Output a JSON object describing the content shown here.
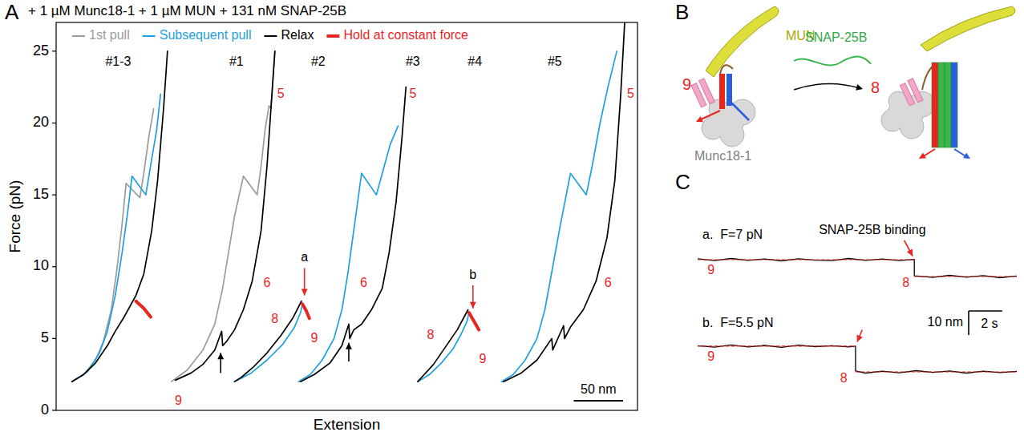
{
  "panel_labels": [
    "A",
    "B",
    "C"
  ],
  "chart_data": [
    {
      "type": "line",
      "title": "+ 1 µM Munc18-1 + 1 µM MUN + 131 nM SNAP-25B",
      "x_label": "Extension",
      "y_label": "Force (pN)",
      "xlim": [
        0,
        590
      ],
      "ylim": [
        0,
        27
      ],
      "yticks": [
        0,
        5,
        10,
        15,
        20,
        25
      ],
      "tick_labels": "y",
      "legend": "top-left",
      "scale_bar": {
        "x": 50,
        "x_label": "50 nm"
      },
      "series": [
        {
          "name": "1st pull",
          "color": "#9b9b9b",
          "x": [
            16,
            28,
            40,
            48,
            56,
            62,
            67,
            71,
            85,
            89,
            94,
            99
          ],
          "values": [
            2,
            2.5,
            3.5,
            4.8,
            7,
            10,
            13,
            15.8,
            14.8,
            16.5,
            19,
            21
          ]
        },
        {
          "name": "Subsequent pull",
          "color": "#1fa0e0",
          "x": [
            16,
            32,
            44,
            52,
            60,
            67,
            73,
            77,
            91,
            97,
            102,
            106
          ],
          "values": [
            2,
            2.7,
            4,
            5.5,
            8,
            11,
            14,
            16.3,
            15,
            17.5,
            19.5,
            22
          ]
        },
        {
          "name": "Relax",
          "color": "#000000",
          "x": [
            113,
            109,
            103,
            97,
            89,
            81,
            69,
            60,
            52,
            40,
            28,
            16
          ],
          "values": [
            25,
            21,
            16,
            12.5,
            9.5,
            8,
            6.5,
            5.5,
            4.5,
            3.3,
            2.5,
            2
          ]
        },
        {
          "name": "Hold at constant force",
          "color": "#e8251f",
          "line_style": "bold",
          "x": [
            81,
            89,
            96
          ],
          "values": [
            7.6,
            7.1,
            6.5
          ]
        },
        {
          "name": "1st pull",
          "color": "#9b9b9b",
          "x": [
            117,
            133,
            149,
            161,
            169,
            175,
            181,
            190,
            204,
            208,
            212,
            216,
            218,
            220,
            222
          ],
          "values": [
            2,
            2.8,
            4.2,
            6,
            8.5,
            11,
            13.5,
            16.3,
            15,
            17,
            19.5,
            21.2,
            21,
            23,
            25
          ]
        },
        {
          "name": "Relax",
          "color": "#000000",
          "x": [
            222,
            219,
            214,
            208,
            199,
            190,
            181,
            173,
            169,
            168,
            161,
            149,
            137,
            121
          ],
          "values": [
            25,
            22,
            17,
            12.5,
            9,
            7,
            5.6,
            4.8,
            4.5,
            5.5,
            4.2,
            3.2,
            2.6,
            2.1
          ]
        },
        {
          "name": "Subsequent pull",
          "color": "#1fa0e0",
          "x": [
            181,
            198,
            214,
            230,
            242,
            248,
            250
          ],
          "values": [
            2,
            2.6,
            3.5,
            4.6,
            5.8,
            6.8,
            7.4
          ]
        },
        {
          "name": "Relax",
          "color": "#000000",
          "x": [
            249,
            240,
            228,
            214,
            200,
            188,
            181
          ],
          "values": [
            7.6,
            6.4,
            5.2,
            4,
            3,
            2.3,
            2
          ]
        },
        {
          "name": "Hold at constant force",
          "color": "#e8251f",
          "line_style": "bold",
          "x": [
            250,
            254,
            257
          ],
          "values": [
            7.4,
            6.9,
            6.4
          ]
        },
        {
          "name": "Subsequent pull",
          "color": "#1fa0e0",
          "x": [
            246,
            258,
            270,
            282,
            290,
            296,
            302,
            310,
            325,
            331,
            339,
            347
          ],
          "values": [
            2,
            2.5,
            3.5,
            5,
            7,
            9.5,
            12.5,
            16.5,
            15,
            16.5,
            18.5,
            19.8
          ]
        },
        {
          "name": "Relax",
          "color": "#000000",
          "x": [
            355,
            351,
            345,
            338,
            331,
            320,
            310,
            302,
            298,
            297,
            290,
            278,
            262,
            248
          ],
          "values": [
            22.5,
            19,
            14.5,
            11,
            8.5,
            7,
            6,
            5.6,
            5,
            6,
            4.5,
            3.3,
            2.5,
            2
          ]
        },
        {
          "name": "Subsequent pull",
          "color": "#1fa0e0",
          "x": [
            367,
            379,
            391,
            403,
            411,
            417,
            419
          ],
          "values": [
            2,
            2.5,
            3.3,
            4.3,
            5.3,
            6.2,
            6.8
          ]
        },
        {
          "name": "Relax",
          "color": "#000000",
          "x": [
            418,
            407,
            395,
            383,
            371,
            367
          ],
          "values": [
            7,
            5.6,
            4.4,
            3.2,
            2.3,
            2
          ]
        },
        {
          "name": "Hold at constant force",
          "color": "#e8251f",
          "line_style": "bold",
          "x": [
            419,
            424,
            429
          ],
          "values": [
            6.8,
            6.2,
            5.6
          ]
        },
        {
          "name": "Subsequent pull",
          "color": "#1fa0e0",
          "x": [
            452,
            464,
            476,
            488,
            496,
            504,
            512,
            522,
            538,
            544,
            552,
            560,
            569
          ],
          "values": [
            2,
            2.5,
            3.5,
            5,
            7,
            10,
            13,
            16.5,
            15,
            17,
            20,
            22.5,
            25
          ]
        },
        {
          "name": "Relax",
          "color": "#000000",
          "x": [
            577,
            573,
            567,
            559,
            548,
            535,
            522,
            516,
            515,
            504,
            503,
            488,
            472,
            454
          ],
          "values": [
            27,
            22,
            16,
            12,
            9,
            7,
            5.8,
            5,
            5.9,
            4.2,
            5,
            3.5,
            2.6,
            2
          ]
        }
      ],
      "annotations": [
        {
          "text": "#1-3",
          "x": 63,
          "y": 24.2,
          "color": "#000000"
        },
        {
          "text": "#1",
          "x": 183,
          "y": 24.2,
          "color": "#000000"
        },
        {
          "text": "#2",
          "x": 266,
          "y": 24.2,
          "color": "#000000"
        },
        {
          "text": "#3",
          "x": 362,
          "y": 24.2,
          "color": "#000000"
        },
        {
          "text": "#4",
          "x": 425,
          "y": 24.2,
          "color": "#000000"
        },
        {
          "text": "#5",
          "x": 506,
          "y": 24.2,
          "color": "#000000"
        },
        {
          "text": "9",
          "x": 124,
          "y": 0.6,
          "color": "#e8251f"
        },
        {
          "text": "6",
          "x": 214,
          "y": 8.8,
          "color": "#e8251f"
        },
        {
          "text": "5",
          "x": 228,
          "y": 22,
          "color": "#e8251f"
        },
        {
          "text": "8",
          "x": 222,
          "y": 6.3,
          "color": "#e8251f"
        },
        {
          "text": "9",
          "x": 262,
          "y": 5,
          "color": "#e8251f"
        },
        {
          "text": "a",
          "x": 252,
          "y": 10.6,
          "color": "#000000"
        },
        {
          "text": "6",
          "x": 312,
          "y": 8.8,
          "color": "#e8251f"
        },
        {
          "text": "5",
          "x": 362,
          "y": 22,
          "color": "#e8251f"
        },
        {
          "text": "8",
          "x": 380,
          "y": 5.2,
          "color": "#e8251f"
        },
        {
          "text": "9",
          "x": 433,
          "y": 3.5,
          "color": "#e8251f"
        },
        {
          "text": "b",
          "x": 423,
          "y": 9.4,
          "color": "#000000"
        },
        {
          "text": "6",
          "x": 560,
          "y": 8.8,
          "color": "#e8251f"
        },
        {
          "text": "5",
          "x": 583,
          "y": 22,
          "color": "#e8251f"
        }
      ],
      "arrows": [
        {
          "x": 167,
          "y": 2.6,
          "to_x": 167,
          "to_y": 4.0,
          "color": "#000000"
        },
        {
          "x": 297,
          "y": 3.4,
          "to_x": 297,
          "to_y": 4.7,
          "color": "#000000"
        },
        {
          "x": 252,
          "y": 9.9,
          "to_x": 252,
          "to_y": 8.0,
          "color": "#e8251f"
        },
        {
          "x": 423,
          "y": 8.7,
          "to_x": 423,
          "to_y": 7.1,
          "color": "#e8251f"
        }
      ]
    },
    {
      "type": "line",
      "title": "a.  F=7 pN",
      "xlim": [
        0,
        19
      ],
      "ylim": [
        -4,
        11
      ],
      "tick_labels": false,
      "series": [
        {
          "color": "#000000",
          "x": [
            0,
            1,
            2,
            3,
            4,
            5,
            6,
            7,
            8,
            9,
            10,
            11,
            12,
            12.9,
            12.9,
            14,
            15,
            16,
            17,
            18,
            19
          ],
          "values": [
            7.4,
            6.6,
            7.5,
            6.7,
            7.3,
            6.5,
            7.4,
            6.8,
            6.6,
            7.5,
            6.7,
            7.3,
            6.6,
            7.1,
            0.3,
            -0.4,
            0.5,
            -0.3,
            0.4,
            -0.5,
            0.2
          ]
        },
        {
          "color": "#e8251f",
          "line_style": "dashed",
          "x": [
            0,
            12.9
          ],
          "values": [
            7,
            7
          ]
        },
        {
          "color": "#e8251f",
          "line_style": "dashed",
          "x": [
            12.9,
            19
          ],
          "values": [
            0,
            0
          ]
        }
      ],
      "annotations": [
        {
          "text": "SNAP-25B binding",
          "x": 10.4,
          "y": 19,
          "color": "#000000"
        },
        {
          "text": "9",
          "x": 0.8,
          "y": 2.5,
          "color": "#e8251f"
        },
        {
          "text": "8",
          "x": 12.4,
          "y": -2.8,
          "color": "#e8251f"
        }
      ],
      "arrows": [
        {
          "x": 12.3,
          "y": 15,
          "to_x": 12.8,
          "to_y": 8.5,
          "color": "#e8251f"
        }
      ]
    },
    {
      "type": "line",
      "title": "b.  F=5.5 pN",
      "xlim": [
        0,
        19
      ],
      "ylim": [
        -4,
        14
      ],
      "tick_labels": false,
      "scale_bar": {
        "x": 2,
        "x_label": "2 s",
        "y": 10,
        "y_label": "10 nm"
      },
      "series": [
        {
          "color": "#000000",
          "x": [
            0,
            1,
            2,
            3,
            4,
            5,
            6,
            7,
            8,
            9,
            9.4,
            9.4,
            10,
            11,
            12,
            13,
            14,
            15,
            16,
            17,
            18,
            19
          ],
          "values": [
            10.9,
            10.3,
            11.2,
            10.4,
            11.0,
            10.2,
            11.1,
            10.5,
            10.9,
            10.4,
            10.7,
            0.4,
            -0.5,
            0.3,
            -0.4,
            0.5,
            -0.2,
            0.4,
            -0.5,
            0.3,
            -0.3,
            0.2
          ]
        },
        {
          "color": "#e8251f",
          "line_style": "dashed",
          "x": [
            0,
            9.4
          ],
          "values": [
            10.7,
            10.7
          ]
        },
        {
          "color": "#e8251f",
          "line_style": "dashed",
          "x": [
            9.4,
            19
          ],
          "values": [
            0,
            0
          ]
        }
      ],
      "annotations": [
        {
          "text": "9",
          "x": 0.8,
          "y": 6.2,
          "color": "#e8251f"
        },
        {
          "text": "8",
          "x": 8.7,
          "y": -2.8,
          "color": "#e8251f"
        }
      ],
      "arrows": [
        {
          "x": 9.8,
          "y": 17.5,
          "to_x": 9.5,
          "to_y": 12.5,
          "color": "#e8251f"
        }
      ]
    }
  ],
  "diagram": {
    "state_before": "9",
    "state_after": "8",
    "mun": "MUN",
    "snap_25b": "SNAP-25B",
    "munc18_1": "Munc18-1"
  }
}
